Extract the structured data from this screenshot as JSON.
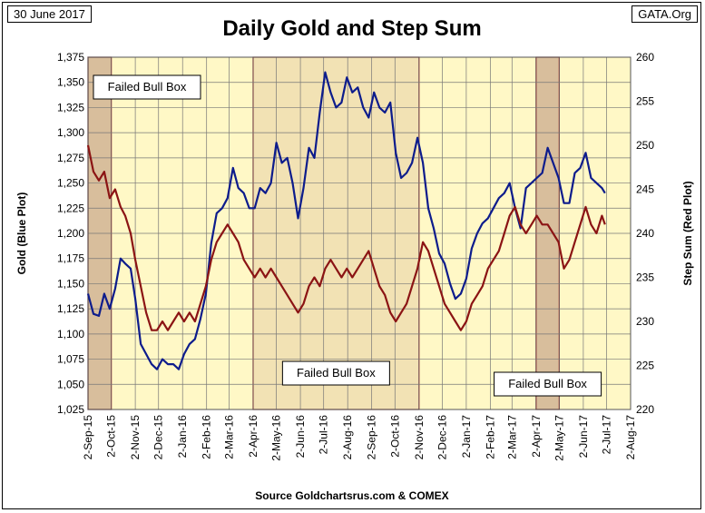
{
  "header": {
    "date_label": "30 June 2017",
    "site_label": "GATA.Org",
    "source_label": "Source Goldchartsrus.com & COMEX"
  },
  "chart_data": {
    "type": "line",
    "title": "Daily Gold and Step Sum",
    "ylabel_left": "Gold   (Blue Plot)",
    "ylabel_right": "Step Sum   (Red Plot)",
    "ylim_left": [
      1025,
      1375
    ],
    "ylim_right": [
      220,
      260
    ],
    "yticks_left": [
      "1,025",
      "1,050",
      "1,075",
      "1,100",
      "1,125",
      "1,150",
      "1,175",
      "1,200",
      "1,225",
      "1,250",
      "1,275",
      "1,300",
      "1,325",
      "1,350",
      "1,375"
    ],
    "yticks_right": [
      "220",
      "225",
      "230",
      "235",
      "240",
      "245",
      "250",
      "255",
      "260"
    ],
    "x_tick_labels": [
      "2-Sep-15",
      "2-Oct-15",
      "2-Nov-15",
      "2-Dec-15",
      "2-Jan-16",
      "2-Feb-16",
      "2-Mar-16",
      "2-Apr-16",
      "2-May-16",
      "2-Jun-16",
      "2-Jul-16",
      "2-Aug-16",
      "2-Sep-16",
      "2-Oct-16",
      "2-Nov-16",
      "2-Dec-16",
      "2-Jan-17",
      "2-Feb-17",
      "2-Mar-17",
      "2-Apr-17",
      "2-May-17",
      "2-Jun-17",
      "2-Jul-17",
      "2-Aug-17"
    ],
    "grid": true,
    "background_color": "#FFF8C6",
    "boxes": [
      {
        "start": "2-Sep-15",
        "end": "2-Oct-15",
        "label": "Failed Bull Box",
        "fill": "#D8BE9C",
        "label_position": "top-left"
      },
      {
        "start": "2-Apr-16",
        "end": "2-Nov-16",
        "label": "Failed Bull Box",
        "fill": "#F2E2B4",
        "label_position": "bottom-center"
      },
      {
        "start": "2-Apr-17",
        "end": "2-May-17",
        "label": "Failed Bull Box",
        "fill": "#D8BE9C",
        "label_position": "bottom-center"
      }
    ],
    "series": [
      {
        "name": "Gold",
        "axis": "left",
        "color": "#0D1C8C",
        "points": [
          [
            "2-Sep-15",
            1140
          ],
          [
            "9-Sep-15",
            1120
          ],
          [
            "16-Sep-15",
            1118
          ],
          [
            "23-Sep-15",
            1140
          ],
          [
            "30-Sep-15",
            1125
          ],
          [
            "7-Oct-15",
            1145
          ],
          [
            "14-Oct-15",
            1175
          ],
          [
            "20-Oct-15",
            1170
          ],
          [
            "27-Oct-15",
            1165
          ],
          [
            "2-Nov-15",
            1135
          ],
          [
            "9-Nov-15",
            1090
          ],
          [
            "16-Nov-15",
            1080
          ],
          [
            "23-Nov-15",
            1070
          ],
          [
            "30-Nov-15",
            1065
          ],
          [
            "7-Dec-15",
            1075
          ],
          [
            "14-Dec-15",
            1070
          ],
          [
            "21-Dec-15",
            1070
          ],
          [
            "28-Dec-15",
            1065
          ],
          [
            "4-Jan-16",
            1080
          ],
          [
            "11-Jan-16",
            1090
          ],
          [
            "18-Jan-16",
            1095
          ],
          [
            "25-Jan-16",
            1115
          ],
          [
            "1-Feb-16",
            1140
          ],
          [
            "8-Feb-16",
            1190
          ],
          [
            "15-Feb-16",
            1220
          ],
          [
            "22-Feb-16",
            1225
          ],
          [
            "29-Feb-16",
            1235
          ],
          [
            "7-Mar-16",
            1265
          ],
          [
            "14-Mar-16",
            1245
          ],
          [
            "21-Mar-16",
            1240
          ],
          [
            "28-Mar-16",
            1225
          ],
          [
            "4-Apr-16",
            1225
          ],
          [
            "11-Apr-16",
            1245
          ],
          [
            "18-Apr-16",
            1240
          ],
          [
            "25-Apr-16",
            1250
          ],
          [
            "2-May-16",
            1290
          ],
          [
            "9-May-16",
            1270
          ],
          [
            "16-May-16",
            1275
          ],
          [
            "23-May-16",
            1250
          ],
          [
            "30-May-16",
            1215
          ],
          [
            "6-Jun-16",
            1245
          ],
          [
            "13-Jun-16",
            1285
          ],
          [
            "20-Jun-16",
            1275
          ],
          [
            "27-Jun-16",
            1320
          ],
          [
            "4-Jul-16",
            1360
          ],
          [
            "11-Jul-16",
            1340
          ],
          [
            "18-Jul-16",
            1325
          ],
          [
            "25-Jul-16",
            1330
          ],
          [
            "1-Aug-16",
            1355
          ],
          [
            "8-Aug-16",
            1340
          ],
          [
            "15-Aug-16",
            1345
          ],
          [
            "22-Aug-16",
            1325
          ],
          [
            "29-Aug-16",
            1315
          ],
          [
            "5-Sep-16",
            1340
          ],
          [
            "12-Sep-16",
            1325
          ],
          [
            "19-Sep-16",
            1320
          ],
          [
            "26-Sep-16",
            1330
          ],
          [
            "3-Oct-16",
            1280
          ],
          [
            "10-Oct-16",
            1255
          ],
          [
            "17-Oct-16",
            1260
          ],
          [
            "24-Oct-16",
            1270
          ],
          [
            "31-Oct-16",
            1295
          ],
          [
            "7-Nov-16",
            1270
          ],
          [
            "14-Nov-16",
            1225
          ],
          [
            "21-Nov-16",
            1205
          ],
          [
            "28-Nov-16",
            1180
          ],
          [
            "5-Dec-16",
            1170
          ],
          [
            "12-Dec-16",
            1150
          ],
          [
            "19-Dec-16",
            1135
          ],
          [
            "26-Dec-16",
            1140
          ],
          [
            "2-Jan-17",
            1155
          ],
          [
            "9-Jan-17",
            1185
          ],
          [
            "16-Jan-17",
            1200
          ],
          [
            "23-Jan-17",
            1210
          ],
          [
            "30-Jan-17",
            1215
          ],
          [
            "6-Feb-17",
            1225
          ],
          [
            "13-Feb-17",
            1235
          ],
          [
            "20-Feb-17",
            1240
          ],
          [
            "27-Feb-17",
            1250
          ],
          [
            "6-Mar-17",
            1225
          ],
          [
            "13-Mar-17",
            1205
          ],
          [
            "20-Mar-17",
            1245
          ],
          [
            "27-Mar-17",
            1250
          ],
          [
            "3-Apr-17",
            1255
          ],
          [
            "10-Apr-17",
            1260
          ],
          [
            "17-Apr-17",
            1285
          ],
          [
            "24-Apr-17",
            1270
          ],
          [
            "1-May-17",
            1255
          ],
          [
            "8-May-17",
            1230
          ],
          [
            "15-May-17",
            1230
          ],
          [
            "22-May-17",
            1260
          ],
          [
            "29-May-17",
            1265
          ],
          [
            "5-Jun-17",
            1280
          ],
          [
            "12-Jun-17",
            1255
          ],
          [
            "19-Jun-17",
            1250
          ],
          [
            "26-Jun-17",
            1245
          ],
          [
            "30-Jun-17",
            1240
          ]
        ]
      },
      {
        "name": "Step Sum",
        "axis": "right",
        "color": "#8B1414",
        "points": [
          [
            "2-Sep-15",
            250
          ],
          [
            "9-Sep-15",
            247
          ],
          [
            "16-Sep-15",
            246
          ],
          [
            "23-Sep-15",
            247
          ],
          [
            "30-Sep-15",
            244
          ],
          [
            "7-Oct-15",
            245
          ],
          [
            "14-Oct-15",
            243
          ],
          [
            "20-Oct-15",
            242
          ],
          [
            "27-Oct-15",
            240
          ],
          [
            "2-Nov-15",
            237
          ],
          [
            "9-Nov-15",
            234
          ],
          [
            "16-Nov-15",
            231
          ],
          [
            "23-Nov-15",
            229
          ],
          [
            "30-Nov-15",
            229
          ],
          [
            "7-Dec-15",
            230
          ],
          [
            "14-Dec-15",
            229
          ],
          [
            "21-Dec-15",
            230
          ],
          [
            "28-Dec-15",
            231
          ],
          [
            "4-Jan-16",
            230
          ],
          [
            "11-Jan-16",
            231
          ],
          [
            "18-Jan-16",
            230
          ],
          [
            "25-Jan-16",
            232
          ],
          [
            "1-Feb-16",
            234
          ],
          [
            "8-Feb-16",
            237
          ],
          [
            "15-Feb-16",
            239
          ],
          [
            "22-Feb-16",
            240
          ],
          [
            "29-Feb-16",
            241
          ],
          [
            "7-Mar-16",
            240
          ],
          [
            "14-Mar-16",
            239
          ],
          [
            "21-Mar-16",
            237
          ],
          [
            "28-Mar-16",
            236
          ],
          [
            "4-Apr-16",
            235
          ],
          [
            "11-Apr-16",
            236
          ],
          [
            "18-Apr-16",
            235
          ],
          [
            "25-Apr-16",
            236
          ],
          [
            "2-May-16",
            235
          ],
          [
            "9-May-16",
            234
          ],
          [
            "16-May-16",
            233
          ],
          [
            "23-May-16",
            232
          ],
          [
            "30-May-16",
            231
          ],
          [
            "6-Jun-16",
            232
          ],
          [
            "13-Jun-16",
            234
          ],
          [
            "20-Jun-16",
            235
          ],
          [
            "27-Jun-16",
            234
          ],
          [
            "4-Jul-16",
            236
          ],
          [
            "11-Jul-16",
            237
          ],
          [
            "18-Jul-16",
            236
          ],
          [
            "25-Jul-16",
            235
          ],
          [
            "1-Aug-16",
            236
          ],
          [
            "8-Aug-16",
            235
          ],
          [
            "15-Aug-16",
            236
          ],
          [
            "22-Aug-16",
            237
          ],
          [
            "29-Aug-16",
            238
          ],
          [
            "5-Sep-16",
            236
          ],
          [
            "12-Sep-16",
            234
          ],
          [
            "19-Sep-16",
            233
          ],
          [
            "26-Sep-16",
            231
          ],
          [
            "3-Oct-16",
            230
          ],
          [
            "10-Oct-16",
            231
          ],
          [
            "17-Oct-16",
            232
          ],
          [
            "24-Oct-16",
            234
          ],
          [
            "31-Oct-16",
            236
          ],
          [
            "7-Nov-16",
            239
          ],
          [
            "14-Nov-16",
            238
          ],
          [
            "21-Nov-16",
            236
          ],
          [
            "28-Nov-16",
            234
          ],
          [
            "5-Dec-16",
            232
          ],
          [
            "12-Dec-16",
            231
          ],
          [
            "19-Dec-16",
            230
          ],
          [
            "26-Dec-16",
            229
          ],
          [
            "2-Jan-17",
            230
          ],
          [
            "9-Jan-17",
            232
          ],
          [
            "16-Jan-17",
            233
          ],
          [
            "23-Jan-17",
            234
          ],
          [
            "30-Jan-17",
            236
          ],
          [
            "6-Feb-17",
            237
          ],
          [
            "13-Feb-17",
            238
          ],
          [
            "20-Feb-17",
            240
          ],
          [
            "27-Feb-17",
            242
          ],
          [
            "6-Mar-17",
            243
          ],
          [
            "13-Mar-17",
            241
          ],
          [
            "20-Mar-17",
            240
          ],
          [
            "27-Mar-17",
            241
          ],
          [
            "3-Apr-17",
            242
          ],
          [
            "10-Apr-17",
            241
          ],
          [
            "17-Apr-17",
            241
          ],
          [
            "24-Apr-17",
            240
          ],
          [
            "1-May-17",
            239
          ],
          [
            "8-May-17",
            236
          ],
          [
            "15-May-17",
            237
          ],
          [
            "22-May-17",
            239
          ],
          [
            "29-May-17",
            241
          ],
          [
            "5-Jun-17",
            243
          ],
          [
            "12-Jun-17",
            241
          ],
          [
            "19-Jun-17",
            240
          ],
          [
            "26-Jun-17",
            242
          ],
          [
            "30-Jun-17",
            241
          ]
        ]
      }
    ]
  }
}
